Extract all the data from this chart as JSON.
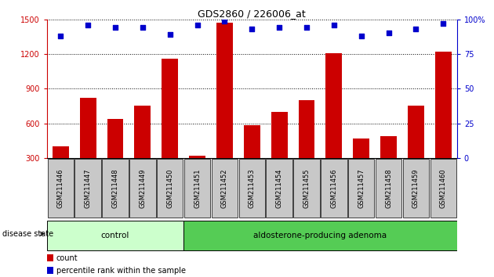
{
  "title": "GDS2860 / 226006_at",
  "samples": [
    "GSM211446",
    "GSM211447",
    "GSM211448",
    "GSM211449",
    "GSM211450",
    "GSM211451",
    "GSM211452",
    "GSM211453",
    "GSM211454",
    "GSM211455",
    "GSM211456",
    "GSM211457",
    "GSM211458",
    "GSM211459",
    "GSM211460"
  ],
  "counts": [
    400,
    820,
    640,
    755,
    1160,
    320,
    1470,
    580,
    700,
    800,
    1210,
    470,
    490,
    750,
    1220
  ],
  "percentiles": [
    88,
    96,
    94,
    94,
    89,
    96,
    99,
    93,
    94,
    94,
    96,
    88,
    90,
    93,
    97
  ],
  "control_count": 5,
  "ylim_left": [
    300,
    1500
  ],
  "ylim_right": [
    0,
    100
  ],
  "yticks_left": [
    300,
    600,
    900,
    1200,
    1500
  ],
  "yticks_right": [
    0,
    25,
    50,
    75,
    100
  ],
  "bar_color": "#cc0000",
  "dot_color": "#0000cc",
  "control_label": "control",
  "adenoma_label": "aldosterone-producing adenoma",
  "control_bg": "#ccffcc",
  "adenoma_bg": "#55cc55",
  "label_bg": "#c8c8c8",
  "disease_state_label": "disease state",
  "legend_count": "count",
  "legend_percentile": "percentile rank within the sample",
  "grid_color": "#000000",
  "right_axis_color": "#0000cc",
  "left_axis_color": "#cc0000",
  "title_fontsize": 9,
  "tick_fontsize": 7,
  "label_fontsize": 6,
  "legend_fontsize": 7
}
